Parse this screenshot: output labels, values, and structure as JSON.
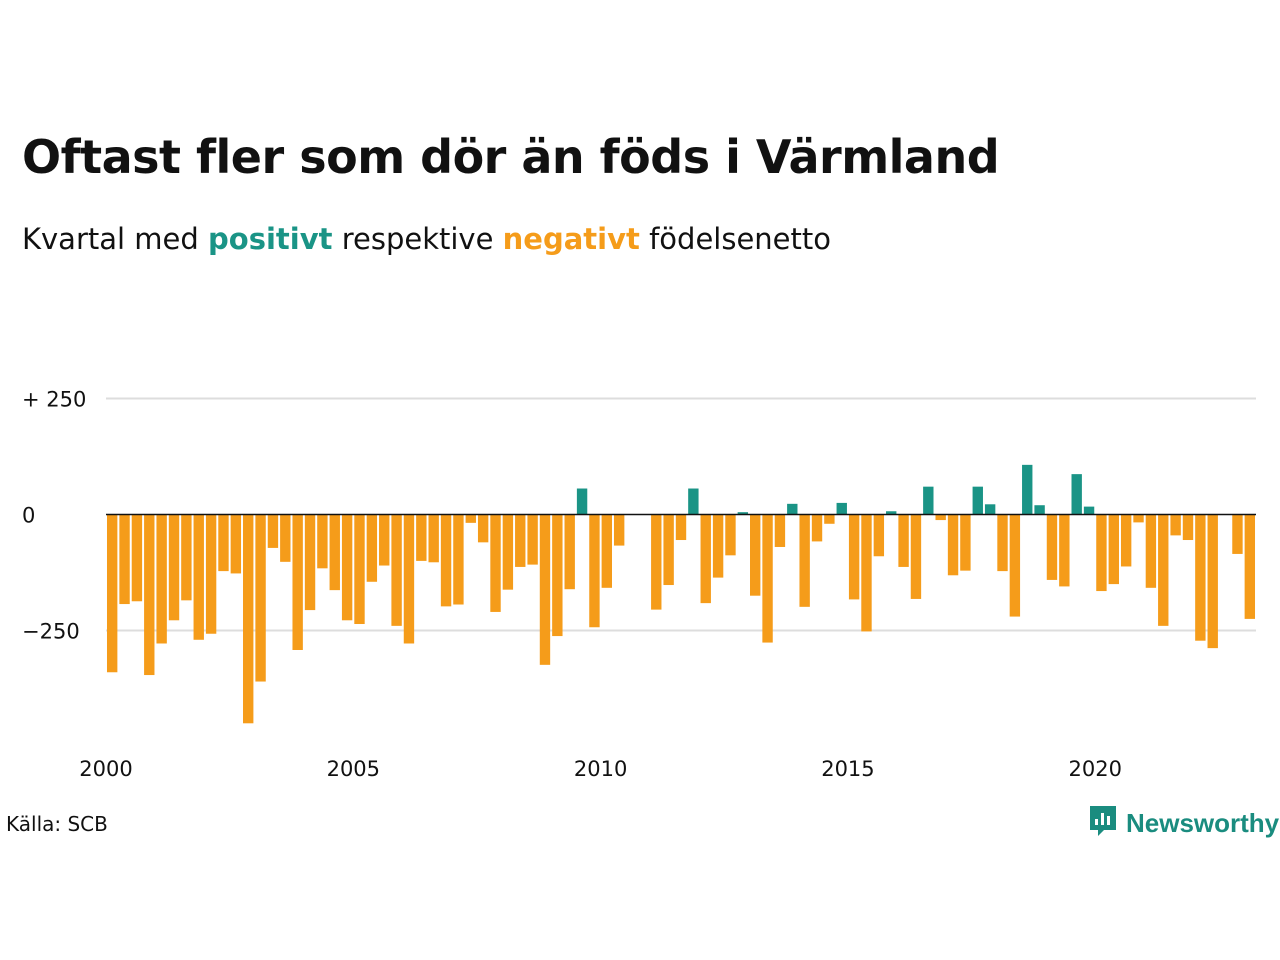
{
  "title": "Oftast fler som dör än föds i Värmland",
  "subtitle": {
    "prefix": "Kvartal med ",
    "positive": "positivt",
    "middle": " respektive ",
    "negative": "negativt",
    "suffix": " födelsenetto"
  },
  "colors": {
    "positive": "#1a9486",
    "negative": "#f59c1a",
    "grid": "#dddddd",
    "zero_line": "#111111"
  },
  "source": "Källa: SCB",
  "brand": {
    "name": "Newsworthy",
    "icon": "newsworthy-logo-icon"
  },
  "chart_data": {
    "type": "bar",
    "x_ticks": [
      2000,
      2005,
      2010,
      2015,
      2020
    ],
    "y_ticks": [
      {
        "value": 250,
        "label": "+ 250"
      },
      {
        "value": 0,
        "label": "0"
      },
      {
        "value": -250,
        "label": "−250"
      }
    ],
    "ylim": [
      -450,
      250
    ],
    "xlim": [
      2000,
      2023.25
    ],
    "grid": true,
    "start": "2000 Q1",
    "categories": [
      "2000 Q1",
      "2000 Q2",
      "2000 Q3",
      "2000 Q4",
      "2001 Q1",
      "2001 Q2",
      "2001 Q3",
      "2001 Q4",
      "2002 Q1",
      "2002 Q2",
      "2002 Q3",
      "2002 Q4",
      "2003 Q1",
      "2003 Q2",
      "2003 Q3",
      "2003 Q4",
      "2004 Q1",
      "2004 Q2",
      "2004 Q3",
      "2004 Q4",
      "2005 Q1",
      "2005 Q2",
      "2005 Q3",
      "2005 Q4",
      "2006 Q1",
      "2006 Q2",
      "2006 Q3",
      "2006 Q4",
      "2007 Q1",
      "2007 Q2",
      "2007 Q3",
      "2007 Q4",
      "2008 Q1",
      "2008 Q2",
      "2008 Q3",
      "2008 Q4",
      "2009 Q1",
      "2009 Q2",
      "2009 Q3",
      "2009 Q4",
      "2010 Q1",
      "2010 Q2",
      "2010 Q3",
      "2010 Q4",
      "2011 Q1",
      "2011 Q2",
      "2011 Q3",
      "2011 Q4",
      "2012 Q1",
      "2012 Q2",
      "2012 Q3",
      "2012 Q4",
      "2013 Q1",
      "2013 Q2",
      "2013 Q3",
      "2013 Q4",
      "2014 Q1",
      "2014 Q2",
      "2014 Q3",
      "2014 Q4",
      "2015 Q1",
      "2015 Q2",
      "2015 Q3",
      "2015 Q4",
      "2016 Q1",
      "2016 Q2",
      "2016 Q3",
      "2016 Q4",
      "2017 Q1",
      "2017 Q2",
      "2017 Q3",
      "2017 Q4",
      "2018 Q1",
      "2018 Q2",
      "2018 Q3",
      "2018 Q4",
      "2019 Q1",
      "2019 Q2",
      "2019 Q3",
      "2019 Q4",
      "2020 Q1",
      "2020 Q2",
      "2020 Q3",
      "2020 Q4",
      "2021 Q1",
      "2021 Q2",
      "2021 Q3",
      "2021 Q4",
      "2022 Q1",
      "2022 Q2",
      "2022 Q3",
      "2022 Q4",
      "2023 Q1"
    ],
    "values": [
      -340,
      -193,
      -187,
      -346,
      -278,
      -228,
      -185,
      -270,
      -257,
      -122,
      -127,
      -450,
      -360,
      -72,
      -102,
      -292,
      -206,
      -116,
      -163,
      -228,
      -236,
      -145,
      -110,
      -240,
      -278,
      -100,
      -103,
      -198,
      -194,
      -18,
      -60,
      -210,
      -162,
      -113,
      -108,
      -324,
      -262,
      -161,
      56,
      -243,
      -158,
      -67,
      0,
      0,
      -205,
      -152,
      -55,
      56,
      -191,
      -136,
      -88,
      5,
      -175,
      -276,
      -70,
      23,
      -199,
      -58,
      -20,
      25,
      -183,
      -252,
      -90,
      7,
      -113,
      -182,
      60,
      -12,
      -131,
      -121,
      60,
      22,
      -122,
      -220,
      107,
      20,
      -141,
      -155,
      87,
      17,
      -165,
      -150,
      -112,
      -17,
      -158,
      -240,
      -45,
      -55,
      -272,
      -288,
      0,
      -85,
      -225
    ]
  }
}
